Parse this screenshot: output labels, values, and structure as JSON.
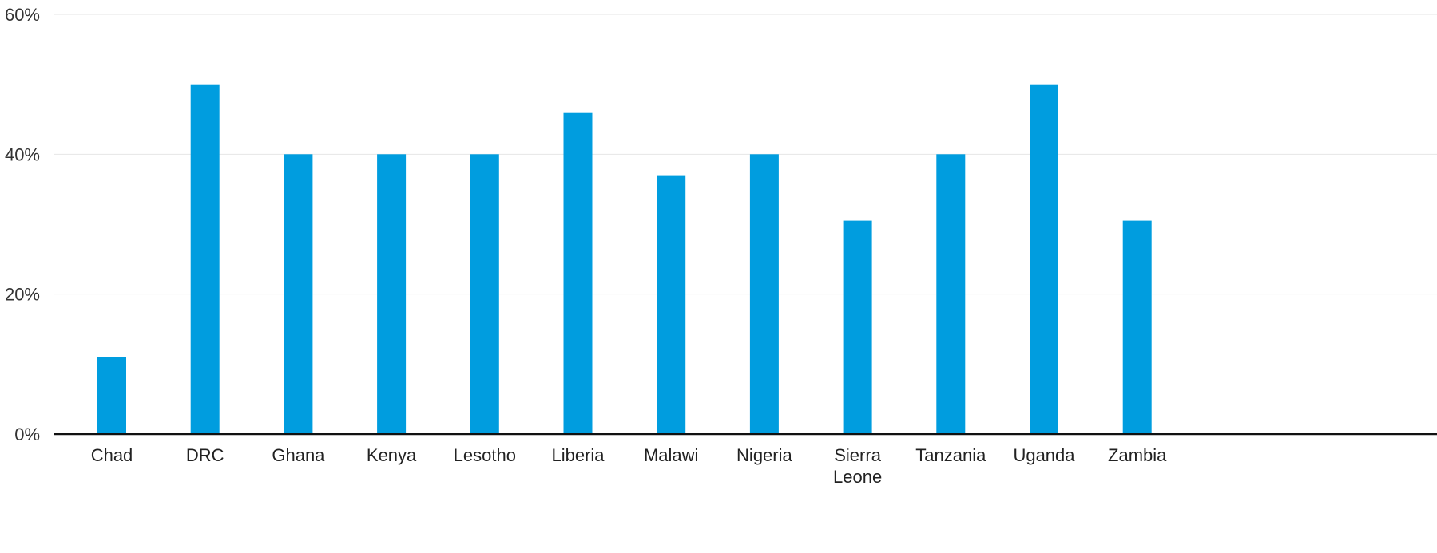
{
  "chart_data": {
    "type": "bar",
    "categories": [
      "Chad",
      "DRC",
      "Ghana",
      "Kenya",
      "Lesotho",
      "Liberia",
      "Malawi",
      "Nigeria",
      "Sierra Leone",
      "Tanzania",
      "Uganda",
      "Zambia"
    ],
    "category_label_lines": [
      [
        "Chad"
      ],
      [
        "DRC"
      ],
      [
        "Ghana"
      ],
      [
        "Kenya"
      ],
      [
        "Lesotho"
      ],
      [
        "Liberia"
      ],
      [
        "Malawi"
      ],
      [
        "Nigeria"
      ],
      [
        "Sierra",
        "Leone"
      ],
      [
        "Tanzania"
      ],
      [
        "Uganda"
      ],
      [
        "Zambia"
      ]
    ],
    "series": [
      {
        "values": [
          11,
          50,
          40,
          40,
          40,
          46,
          37,
          40,
          30.5,
          40,
          50,
          30.5
        ]
      }
    ],
    "ylim": [
      0,
      60
    ],
    "yticks": [
      0,
      20,
      40,
      60
    ],
    "ytick_labels": [
      "0%",
      "20%",
      "40%",
      "60%"
    ],
    "grid": true,
    "bar_color": "#009ddf",
    "title": "",
    "xlabel": "",
    "ylabel": ""
  }
}
